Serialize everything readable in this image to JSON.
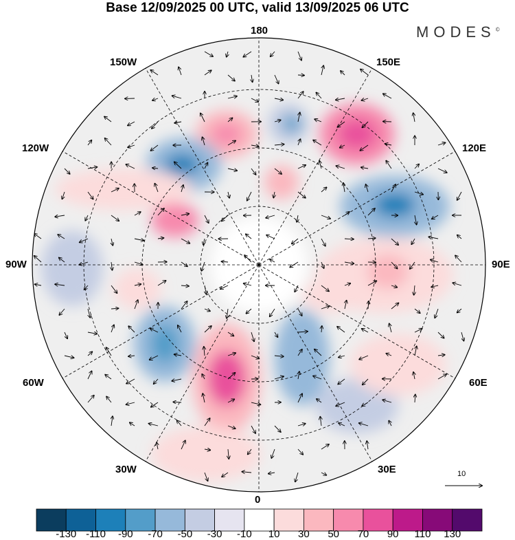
{
  "title": "Base 12/09/2025 00 UTC, valid 13/09/2025 06 UTC",
  "logo": "MODES",
  "logo_mark": "©",
  "longitude_labels": {
    "top": "180",
    "bottom": "0",
    "left": "90W",
    "right": "90E",
    "upper_left_1": "150W",
    "upper_left_2": "120W",
    "upper_right_1": "150E",
    "upper_right_2": "120E",
    "lower_left_1": "60W",
    "lower_left_2": "30W",
    "lower_right_1": "60E",
    "lower_right_2": "30E"
  },
  "reference_vector": "10",
  "colorbar": {
    "colors": [
      "#0b3d5e",
      "#0e6197",
      "#1d80b9",
      "#539dc9",
      "#96b9da",
      "#c4cde3",
      "#e6e4f0",
      "#ffffff",
      "#fcdcdc",
      "#fbb8bf",
      "#f78aad",
      "#e9519c",
      "#bd1a8a",
      "#870a78",
      "#530a6c"
    ],
    "ticks": [
      "-130",
      "-110",
      "-90",
      "-70",
      "-50",
      "-30",
      "-10",
      "10",
      "30",
      "50",
      "70",
      "90",
      "110",
      "130"
    ]
  }
}
